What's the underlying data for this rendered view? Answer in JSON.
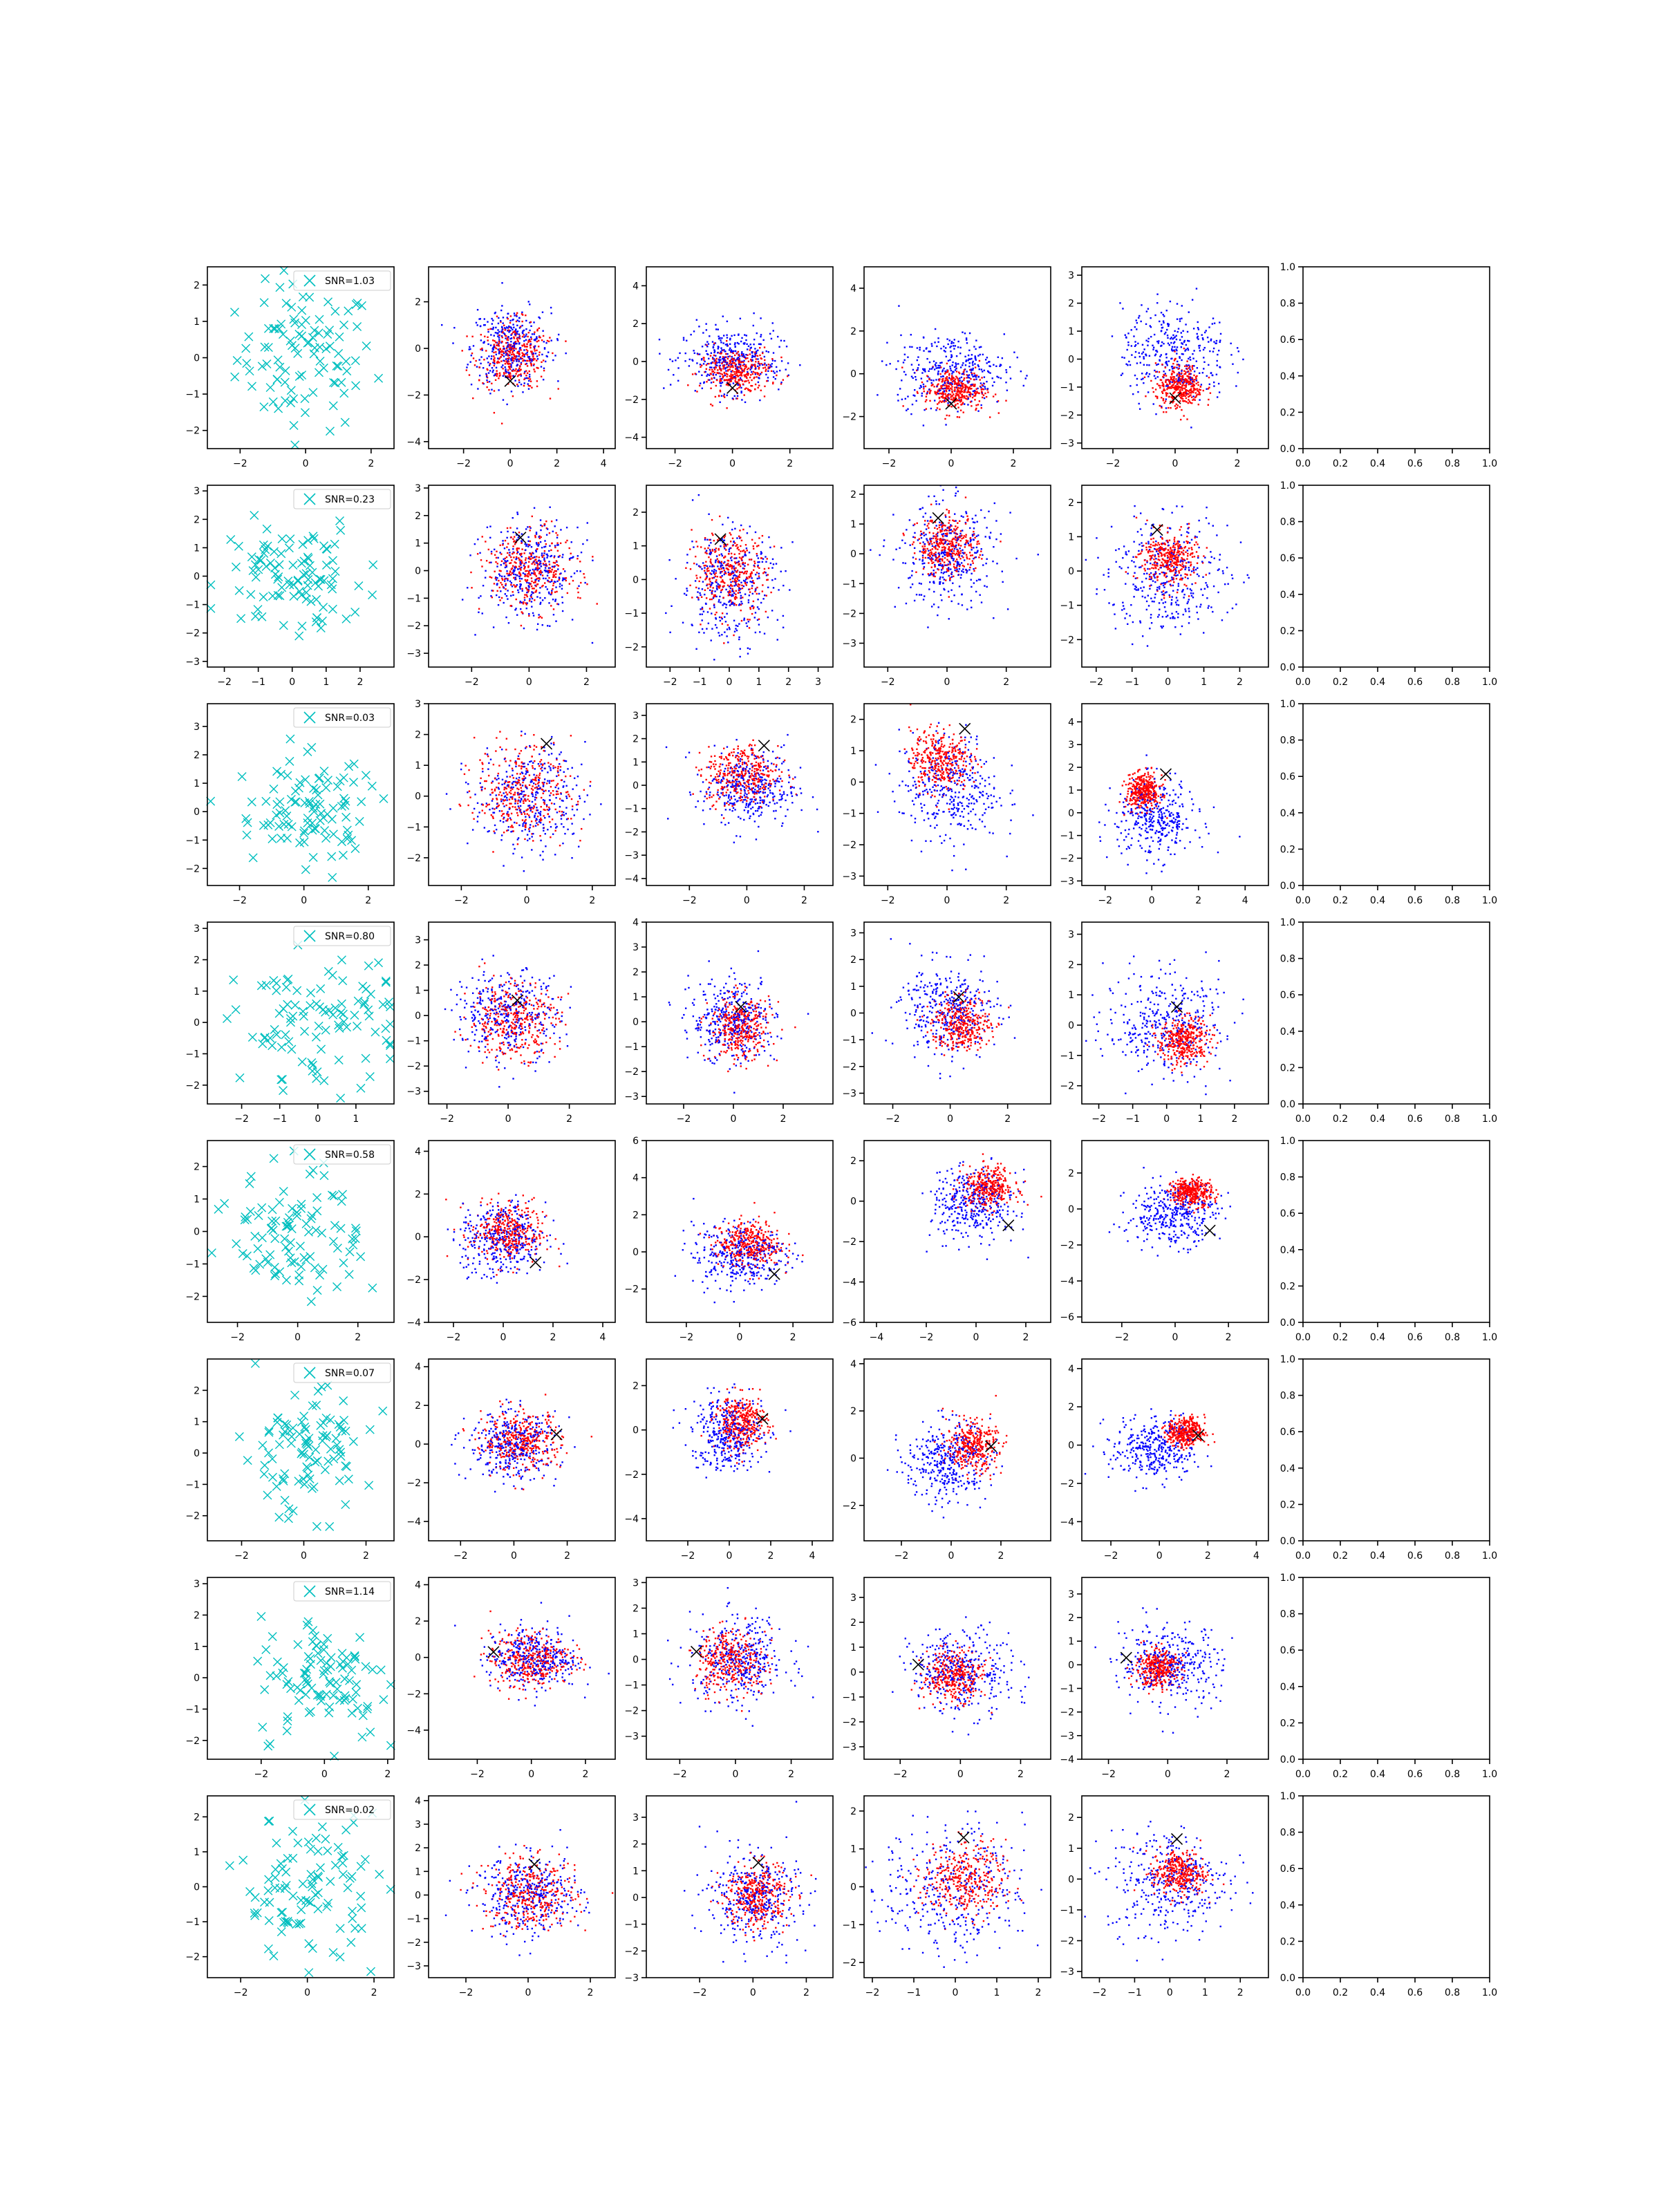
{
  "figure": {
    "rows": 8,
    "cols": 6,
    "colors": {
      "signal": "#00bfbf",
      "blue": "#0000ff",
      "red": "#ff0000",
      "marker": "#000000"
    }
  },
  "chart_data": {
    "type": "scatter",
    "title": "",
    "rows": [
      {
        "snr_label": "SNR=1.03",
        "marker": [
          0.0,
          -1.4
        ],
        "sep": [
          0.1,
          -0.8
        ],
        "panels": [
          {
            "xlim": [
              -3,
              2.7
            ],
            "ylim": [
              -2.5,
              2.5
            ],
            "xticks": [
              -2,
              0,
              2
            ],
            "yticks": [
              -2,
              -1,
              0,
              1,
              2
            ]
          },
          {
            "xlim": [
              -3.5,
              4.5
            ],
            "ylim": [
              -4.3,
              3.5
            ],
            "xticks": [
              -2,
              0,
              2,
              4
            ],
            "yticks": [
              -4,
              -2,
              0,
              2
            ]
          },
          {
            "xlim": [
              -3,
              3.5
            ],
            "ylim": [
              -4.6,
              5
            ],
            "xticks": [
              -2,
              0,
              2
            ],
            "yticks": [
              -4,
              -2,
              0,
              2,
              4
            ]
          },
          {
            "xlim": [
              -2.8,
              3.2
            ],
            "ylim": [
              -3.5,
              5
            ],
            "xticks": [
              -2,
              0,
              2
            ],
            "yticks": [
              -2,
              0,
              2,
              4
            ]
          },
          {
            "xlim": [
              -3,
              3
            ],
            "ylim": [
              -3.2,
              3.3
            ],
            "xticks": [
              -2,
              0,
              2
            ],
            "yticks": [
              -3,
              -2,
              -1,
              0,
              1,
              2,
              3
            ]
          }
        ]
      },
      {
        "snr_label": "SNR=0.23",
        "marker": [
          -0.3,
          1.2
        ],
        "sep": [
          0.0,
          0.3
        ],
        "panels": [
          {
            "xlim": [
              -2.5,
              3
            ],
            "ylim": [
              -3.2,
              3.2
            ],
            "xticks": [
              -2,
              -1,
              0,
              1,
              2
            ],
            "yticks": [
              -3,
              -2,
              -1,
              0,
              1,
              2,
              3
            ]
          },
          {
            "xlim": [
              -3.5,
              3
            ],
            "ylim": [
              -3.5,
              3.1
            ],
            "xticks": [
              -2,
              0,
              2
            ],
            "yticks": [
              -3,
              -2,
              -1,
              0,
              1,
              2,
              3
            ]
          },
          {
            "xlim": [
              -2.8,
              3.5
            ],
            "ylim": [
              -2.6,
              2.8
            ],
            "xticks": [
              -2,
              -1,
              0,
              1,
              2,
              3
            ],
            "yticks": [
              -2,
              -1,
              0,
              1,
              2
            ]
          },
          {
            "xlim": [
              -2.8,
              3.5
            ],
            "ylim": [
              -3.8,
              2.3
            ],
            "xticks": [
              -2,
              0,
              2
            ],
            "yticks": [
              -3,
              -2,
              -1,
              0,
              1,
              2
            ]
          },
          {
            "xlim": [
              -2.4,
              2.8
            ],
            "ylim": [
              -2.8,
              2.5
            ],
            "xticks": [
              -2,
              -1,
              0,
              1,
              2
            ],
            "yticks": [
              -2,
              -1,
              0,
              1,
              2
            ]
          }
        ]
      },
      {
        "snr_label": "SNR=0.03",
        "marker": [
          0.6,
          1.7
        ],
        "sep": [
          -0.3,
          0.8
        ],
        "panels": [
          {
            "xlim": [
              -3,
              2.8
            ],
            "ylim": [
              -2.6,
              3.8
            ],
            "xticks": [
              -2,
              0,
              2
            ],
            "yticks": [
              -2,
              -1,
              0,
              1,
              2,
              3
            ]
          },
          {
            "xlim": [
              -3,
              2.7
            ],
            "ylim": [
              -2.9,
              3
            ],
            "xticks": [
              -2,
              0,
              2
            ],
            "yticks": [
              -2,
              -1,
              0,
              1,
              2,
              3
            ]
          },
          {
            "xlim": [
              -3.5,
              3
            ],
            "ylim": [
              -4.3,
              3.5
            ],
            "xticks": [
              -2,
              0,
              2
            ],
            "yticks": [
              -4,
              -3,
              -2,
              -1,
              0,
              1,
              2,
              3
            ]
          },
          {
            "xlim": [
              -2.8,
              3.5
            ],
            "ylim": [
              -3.3,
              2.5
            ],
            "xticks": [
              -2,
              0,
              2
            ],
            "yticks": [
              -3,
              -2,
              -1,
              0,
              1,
              2
            ]
          },
          {
            "xlim": [
              -3,
              5
            ],
            "ylim": [
              -3.2,
              4.8
            ],
            "xticks": [
              -2,
              0,
              2,
              4
            ],
            "yticks": [
              -3,
              -2,
              -1,
              0,
              1,
              2,
              3,
              4
            ]
          }
        ]
      },
      {
        "snr_label": "SNR=0.80",
        "marker": [
          0.3,
          0.6
        ],
        "sep": [
          0.4,
          -0.4
        ],
        "panels": [
          {
            "xlim": [
              -2.9,
              2
            ],
            "ylim": [
              -2.6,
              3.2
            ],
            "xticks": [
              -2,
              -1,
              0,
              1
            ],
            "yticks": [
              -2,
              -1,
              0,
              1,
              2,
              3
            ]
          },
          {
            "xlim": [
              -2.6,
              3.5
            ],
            "ylim": [
              -3.5,
              3.7
            ],
            "xticks": [
              -2,
              0,
              2
            ],
            "yticks": [
              -3,
              -2,
              -1,
              0,
              1,
              2,
              3
            ]
          },
          {
            "xlim": [
              -3.5,
              4
            ],
            "ylim": [
              -3.3,
              4
            ],
            "xticks": [
              -2,
              0,
              2
            ],
            "yticks": [
              -3,
              -2,
              -1,
              0,
              1,
              2,
              3,
              4
            ]
          },
          {
            "xlim": [
              -3,
              3.5
            ],
            "ylim": [
              -3.4,
              3.4
            ],
            "xticks": [
              -2,
              0,
              2
            ],
            "yticks": [
              -3,
              -2,
              -1,
              0,
              1,
              2,
              3
            ]
          },
          {
            "xlim": [
              -2.5,
              3
            ],
            "ylim": [
              -2.6,
              3.4
            ],
            "xticks": [
              -2,
              -1,
              0,
              1,
              2
            ],
            "yticks": [
              -2,
              -1,
              0,
              1,
              2,
              3
            ]
          }
        ]
      },
      {
        "snr_label": "SNR=0.58",
        "marker": [
          1.3,
          -1.2
        ],
        "sep": [
          0.5,
          0.8
        ],
        "panels": [
          {
            "xlim": [
              -3,
              3.2
            ],
            "ylim": [
              -2.8,
              2.8
            ],
            "xticks": [
              -2,
              0,
              2
            ],
            "yticks": [
              -2,
              -1,
              0,
              1,
              2
            ]
          },
          {
            "xlim": [
              -3,
              4.5
            ],
            "ylim": [
              -4,
              4.5
            ],
            "xticks": [
              -2,
              0,
              2,
              4
            ],
            "yticks": [
              -4,
              -2,
              0,
              2,
              4
            ]
          },
          {
            "xlim": [
              -3.5,
              3.5
            ],
            "ylim": [
              -3.8,
              6
            ],
            "xticks": [
              -2,
              0,
              2
            ],
            "yticks": [
              -2,
              0,
              2,
              4,
              6
            ]
          },
          {
            "xlim": [
              -4.5,
              3
            ],
            "ylim": [
              -6,
              3
            ],
            "xticks": [
              -4,
              -2,
              0,
              2
            ],
            "yticks": [
              -6,
              -4,
              -2,
              0,
              2
            ]
          },
          {
            "xlim": [
              -3.5,
              3.5
            ],
            "ylim": [
              -6.3,
              3.8
            ],
            "xticks": [
              -2,
              0,
              2
            ],
            "yticks": [
              -6,
              -4,
              -2,
              0,
              2
            ]
          }
        ]
      },
      {
        "snr_label": "SNR=0.07",
        "marker": [
          1.6,
          0.5
        ],
        "sep": [
          0.9,
          0.6
        ],
        "panels": [
          {
            "xlim": [
              -3.1,
              2.9
            ],
            "ylim": [
              -2.8,
              3
            ],
            "xticks": [
              -2,
              0,
              2
            ],
            "yticks": [
              -2,
              -1,
              0,
              1,
              2
            ]
          },
          {
            "xlim": [
              -3.2,
              3.8
            ],
            "ylim": [
              -5,
              4.4
            ],
            "xticks": [
              -2,
              0,
              2
            ],
            "yticks": [
              -4,
              -2,
              0,
              2,
              4
            ]
          },
          {
            "xlim": [
              -4,
              5
            ],
            "ylim": [
              -5,
              3.2
            ],
            "xticks": [
              -2,
              0,
              2,
              4
            ],
            "yticks": [
              -4,
              -2,
              0,
              2
            ]
          },
          {
            "xlim": [
              -3.5,
              4
            ],
            "ylim": [
              -3.5,
              4.2
            ],
            "xticks": [
              -2,
              0,
              2
            ],
            "yticks": [
              -2,
              0,
              2,
              4
            ]
          },
          {
            "xlim": [
              -3.2,
              4.5
            ],
            "ylim": [
              -5,
              4.5
            ],
            "xticks": [
              -2,
              0,
              2,
              4
            ],
            "yticks": [
              -4,
              -2,
              0,
              2,
              4
            ]
          }
        ]
      },
      {
        "snr_label": "SNR=1.14",
        "marker": [
          -1.4,
          0.3
        ],
        "sep": [
          -0.3,
          -0.1
        ],
        "panels": [
          {
            "xlim": [
              -3.7,
              2.2
            ],
            "ylim": [
              -2.6,
              3.2
            ],
            "xticks": [
              -2,
              0,
              2
            ],
            "yticks": [
              -2,
              -1,
              0,
              1,
              2,
              3
            ]
          },
          {
            "xlim": [
              -3.8,
              3.1
            ],
            "ylim": [
              -5.6,
              4.4
            ],
            "xticks": [
              -2,
              0,
              2
            ],
            "yticks": [
              -4,
              -2,
              0,
              2,
              4
            ]
          },
          {
            "xlim": [
              -3.2,
              3.5
            ],
            "ylim": [
              -3.9,
              3.2
            ],
            "xticks": [
              -2,
              0,
              2
            ],
            "yticks": [
              -3,
              -2,
              -1,
              0,
              1,
              2,
              3
            ]
          },
          {
            "xlim": [
              -3.2,
              3
            ],
            "ylim": [
              -3.5,
              3.8
            ],
            "xticks": [
              -2,
              0,
              2
            ],
            "yticks": [
              -3,
              -2,
              -1,
              0,
              1,
              2,
              3
            ]
          },
          {
            "xlim": [
              -2.9,
              3.4
            ],
            "ylim": [
              -4,
              3.7
            ],
            "xticks": [
              -2,
              0,
              2
            ],
            "yticks": [
              -4,
              -3,
              -2,
              -1,
              0,
              1,
              2,
              3
            ]
          }
        ]
      },
      {
        "snr_label": "SNR=0.02",
        "marker": [
          0.2,
          1.3
        ],
        "sep": [
          0.2,
          0.2
        ],
        "panels": [
          {
            "xlim": [
              -3,
              2.6
            ],
            "ylim": [
              -2.6,
              2.6
            ],
            "xticks": [
              -2,
              0,
              2
            ],
            "yticks": [
              -2,
              -1,
              0,
              1,
              2
            ]
          },
          {
            "xlim": [
              -3.2,
              2.8
            ],
            "ylim": [
              -3.5,
              4.2
            ],
            "xticks": [
              -2,
              0,
              2
            ],
            "yticks": [
              -3,
              -2,
              -1,
              0,
              1,
              2,
              3,
              4
            ]
          },
          {
            "xlim": [
              -4,
              3
            ],
            "ylim": [
              -3,
              3.8
            ],
            "xticks": [
              -2,
              0,
              2
            ],
            "yticks": [
              -3,
              -2,
              -1,
              0,
              1,
              2,
              3
            ]
          },
          {
            "xlim": [
              -2.2,
              2.3
            ],
            "ylim": [
              -2.4,
              2.4
            ],
            "xticks": [
              -2,
              -1,
              0,
              1,
              2
            ],
            "yticks": [
              -2,
              -1,
              0,
              1,
              2
            ]
          },
          {
            "xlim": [
              -2.5,
              2.8
            ],
            "ylim": [
              -3.2,
              2.7
            ],
            "xticks": [
              -2,
              -1,
              0,
              1,
              2
            ],
            "yticks": [
              -3,
              -2,
              -1,
              0,
              1,
              2
            ]
          }
        ]
      }
    ],
    "empty_axes": {
      "xlim": [
        0,
        1
      ],
      "ylim": [
        0,
        1
      ],
      "ticks": [
        "0.0",
        "0.2",
        "0.4",
        "0.6",
        "0.8",
        "1.0"
      ]
    }
  }
}
